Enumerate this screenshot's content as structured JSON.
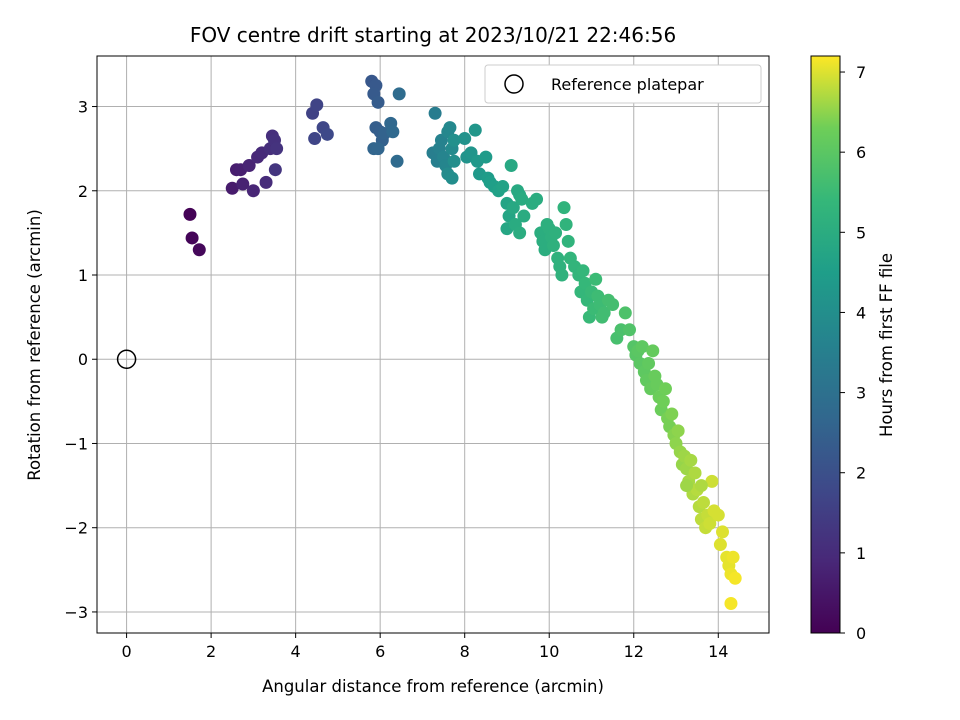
{
  "chart_data": {
    "type": "scatter",
    "title": "FOV centre drift starting at 2023/10/21 22:46:56",
    "xlabel": "Angular distance from reference (arcmin)",
    "ylabel": "Rotation from reference (arcmin)",
    "xlim": [
      -0.7,
      15.2
    ],
    "ylim": [
      -3.25,
      3.6
    ],
    "xticks": [
      0,
      2,
      4,
      6,
      8,
      10,
      12,
      14
    ],
    "yticks": [
      -3,
      -2,
      -1,
      0,
      1,
      2,
      3
    ],
    "xtick_labels": [
      "0",
      "2",
      "4",
      "6",
      "8",
      "10",
      "12",
      "14"
    ],
    "ytick_labels": [
      "−3",
      "−2",
      "−1",
      "0",
      "1",
      "2",
      "3"
    ],
    "grid": true,
    "colormap": "viridis",
    "colorbar": {
      "label": "Hours from first FF file",
      "range": [
        0,
        7.2
      ],
      "ticks": [
        0,
        1,
        2,
        3,
        4,
        5,
        6,
        7
      ],
      "tick_labels": [
        "0",
        "1",
        "2",
        "3",
        "4",
        "5",
        "6",
        "7"
      ]
    },
    "legend": {
      "location": "upper right",
      "label": "Reference platepar"
    },
    "reference_point": {
      "x": 0,
      "y": 0
    },
    "points": [
      [
        1.5,
        1.72,
        0.05
      ],
      [
        1.55,
        1.44,
        0.1
      ],
      [
        1.72,
        1.3,
        0.15
      ],
      [
        2.5,
        2.03,
        0.6
      ],
      [
        2.6,
        2.25,
        0.65
      ],
      [
        2.7,
        2.25,
        0.7
      ],
      [
        2.75,
        2.08,
        0.75
      ],
      [
        2.9,
        2.3,
        0.8
      ],
      [
        3.0,
        2.0,
        0.85
      ],
      [
        3.1,
        2.4,
        0.9
      ],
      [
        3.2,
        2.45,
        0.95
      ],
      [
        3.3,
        2.1,
        1.0
      ],
      [
        3.4,
        2.5,
        1.05
      ],
      [
        3.45,
        2.65,
        1.1
      ],
      [
        3.5,
        2.6,
        1.15
      ],
      [
        3.55,
        2.5,
        1.2
      ],
      [
        3.52,
        2.25,
        1.25
      ],
      [
        4.4,
        2.92,
        1.6
      ],
      [
        4.5,
        3.02,
        1.65
      ],
      [
        4.45,
        2.62,
        1.7
      ],
      [
        4.65,
        2.75,
        1.75
      ],
      [
        4.75,
        2.67,
        1.8
      ],
      [
        5.8,
        3.3,
        2.2
      ],
      [
        5.9,
        3.25,
        2.25
      ],
      [
        5.85,
        3.15,
        2.3
      ],
      [
        5.95,
        3.05,
        2.35
      ],
      [
        5.9,
        2.75,
        2.4
      ],
      [
        6.0,
        2.7,
        2.45
      ],
      [
        6.05,
        2.6,
        2.5
      ],
      [
        6.1,
        2.68,
        2.55
      ],
      [
        5.85,
        2.5,
        2.6
      ],
      [
        5.95,
        2.5,
        2.65
      ],
      [
        6.25,
        2.8,
        2.7
      ],
      [
        6.3,
        2.7,
        2.75
      ],
      [
        6.4,
        2.35,
        2.8
      ],
      [
        6.45,
        3.15,
        2.85
      ],
      [
        7.3,
        2.92,
        3.4
      ],
      [
        7.25,
        2.45,
        3.45
      ],
      [
        7.35,
        2.35,
        3.5
      ],
      [
        7.4,
        2.5,
        3.55
      ],
      [
        7.45,
        2.6,
        3.6
      ],
      [
        7.5,
        2.4,
        3.65
      ],
      [
        7.55,
        2.3,
        3.7
      ],
      [
        7.6,
        2.7,
        3.75
      ],
      [
        7.65,
        2.75,
        3.8
      ],
      [
        7.7,
        2.5,
        3.85
      ],
      [
        7.6,
        2.2,
        3.9
      ],
      [
        7.7,
        2.15,
        3.95
      ],
      [
        7.75,
        2.35,
        4.0
      ],
      [
        7.75,
        2.6,
        4.05
      ],
      [
        8.0,
        2.62,
        4.1
      ],
      [
        8.05,
        2.4,
        4.15
      ],
      [
        8.15,
        2.45,
        4.2
      ],
      [
        8.25,
        2.72,
        4.25
      ],
      [
        8.3,
        2.35,
        4.3
      ],
      [
        8.35,
        2.2,
        4.35
      ],
      [
        8.5,
        2.4,
        4.4
      ],
      [
        8.55,
        2.15,
        4.45
      ],
      [
        8.6,
        2.1,
        4.5
      ],
      [
        8.7,
        2.05,
        4.55
      ],
      [
        8.8,
        2.0,
        4.6
      ],
      [
        8.9,
        2.05,
        4.65
      ],
      [
        9.0,
        1.85,
        4.7
      ],
      [
        9.05,
        1.7,
        4.75
      ],
      [
        9.0,
        1.55,
        4.8
      ],
      [
        9.1,
        2.3,
        4.85
      ],
      [
        9.15,
        1.8,
        4.85
      ],
      [
        9.25,
        2.0,
        4.9
      ],
      [
        9.3,
        1.95,
        4.9
      ],
      [
        9.35,
        1.9,
        4.95
      ],
      [
        9.4,
        1.7,
        4.95
      ],
      [
        9.2,
        1.6,
        4.95
      ],
      [
        9.3,
        1.5,
        5.0
      ],
      [
        9.6,
        1.85,
        5.0
      ],
      [
        9.7,
        1.9,
        5.0
      ],
      [
        9.8,
        1.5,
        5.05
      ],
      [
        9.85,
        1.4,
        5.05
      ],
      [
        9.9,
        1.3,
        5.05
      ],
      [
        9.95,
        1.6,
        5.1
      ],
      [
        10.0,
        1.55,
        5.1
      ],
      [
        10.05,
        1.45,
        5.1
      ],
      [
        10.1,
        1.35,
        5.15
      ],
      [
        10.15,
        1.5,
        5.15
      ],
      [
        10.2,
        1.2,
        5.2
      ],
      [
        10.25,
        1.1,
        5.2
      ],
      [
        10.3,
        1.0,
        5.2
      ],
      [
        10.35,
        1.8,
        5.25
      ],
      [
        10.4,
        1.6,
        5.25
      ],
      [
        10.45,
        1.4,
        5.25
      ],
      [
        10.5,
        1.2,
        5.3
      ],
      [
        10.6,
        1.1,
        5.3
      ],
      [
        10.7,
        1.0,
        5.3
      ],
      [
        10.75,
        0.8,
        5.35
      ],
      [
        10.8,
        1.05,
        5.35
      ],
      [
        10.85,
        0.9,
        5.4
      ],
      [
        10.9,
        0.7,
        5.4
      ],
      [
        10.95,
        0.5,
        5.45
      ],
      [
        11.0,
        0.8,
        5.45
      ],
      [
        11.05,
        0.6,
        5.5
      ],
      [
        11.1,
        0.95,
        5.5
      ],
      [
        11.15,
        0.75,
        5.55
      ],
      [
        11.2,
        0.65,
        5.55
      ],
      [
        11.25,
        0.5,
        5.6
      ],
      [
        11.3,
        0.55,
        5.6
      ],
      [
        11.4,
        0.7,
        5.65
      ],
      [
        11.5,
        0.65,
        5.65
      ],
      [
        11.6,
        0.25,
        5.7
      ],
      [
        11.7,
        0.35,
        5.75
      ],
      [
        11.8,
        0.55,
        5.8
      ],
      [
        11.9,
        0.35,
        5.85
      ],
      [
        12.0,
        0.15,
        5.9
      ],
      [
        12.05,
        0.05,
        5.95
      ],
      [
        12.1,
        0.1,
        6.0
      ],
      [
        12.15,
        -0.05,
        6.0
      ],
      [
        12.2,
        0.15,
        6.05
      ],
      [
        12.25,
        -0.15,
        6.05
      ],
      [
        12.3,
        -0.25,
        6.1
      ],
      [
        12.35,
        -0.05,
        6.1
      ],
      [
        12.4,
        -0.35,
        6.15
      ],
      [
        12.45,
        0.1,
        6.15
      ],
      [
        12.5,
        -0.2,
        6.2
      ],
      [
        12.55,
        -0.3,
        6.2
      ],
      [
        12.6,
        -0.45,
        6.25
      ],
      [
        12.65,
        -0.6,
        6.25
      ],
      [
        12.7,
        -0.5,
        6.3
      ],
      [
        12.75,
        -0.35,
        6.3
      ],
      [
        12.8,
        -0.7,
        6.35
      ],
      [
        12.85,
        -0.8,
        6.35
      ],
      [
        12.9,
        -0.65,
        6.4
      ],
      [
        12.95,
        -0.9,
        6.45
      ],
      [
        13.0,
        -1.0,
        6.5
      ],
      [
        13.05,
        -0.85,
        6.5
      ],
      [
        13.1,
        -1.1,
        6.55
      ],
      [
        13.15,
        -1.25,
        6.55
      ],
      [
        13.2,
        -1.15,
        6.6
      ],
      [
        13.25,
        -1.3,
        6.6
      ],
      [
        13.3,
        -1.45,
        6.65
      ],
      [
        13.35,
        -1.2,
        6.65
      ],
      [
        13.4,
        -1.6,
        6.7
      ],
      [
        13.45,
        -1.35,
        6.7
      ],
      [
        13.5,
        -1.55,
        6.75
      ],
      [
        13.55,
        -1.75,
        6.75
      ],
      [
        13.6,
        -1.9,
        6.8
      ],
      [
        13.65,
        -1.7,
        6.8
      ],
      [
        13.7,
        -2.0,
        6.85
      ],
      [
        13.75,
        -1.85,
        6.85
      ],
      [
        13.8,
        -1.95,
        6.9
      ],
      [
        13.85,
        -1.45,
        6.9
      ],
      [
        13.9,
        -1.8,
        6.95
      ],
      [
        14.0,
        -1.85,
        6.95
      ],
      [
        14.05,
        -2.2,
        7.0
      ],
      [
        14.1,
        -2.05,
        7.0
      ],
      [
        14.2,
        -2.35,
        7.05
      ],
      [
        14.25,
        -2.45,
        7.05
      ],
      [
        14.3,
        -2.55,
        7.1
      ],
      [
        14.35,
        -2.35,
        7.1
      ],
      [
        14.4,
        -2.6,
        7.15
      ],
      [
        14.3,
        -2.9,
        7.15
      ],
      [
        13.25,
        -1.5,
        6.6
      ],
      [
        13.6,
        -1.5,
        6.7
      ]
    ]
  }
}
